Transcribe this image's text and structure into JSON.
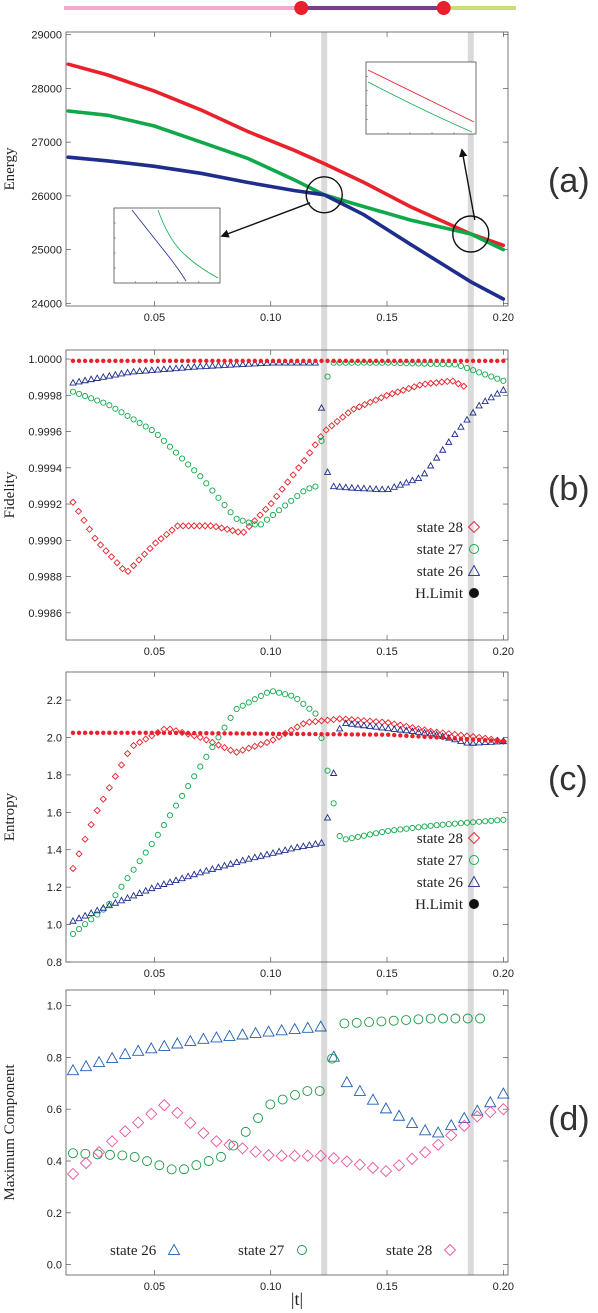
{
  "progress_bar": {
    "segments": [
      {
        "from": 0.0,
        "to": 0.525,
        "color": "#f2a8cf"
      },
      {
        "from": 0.525,
        "to": 0.84,
        "color": "#7a3d8a"
      },
      {
        "from": 0.84,
        "to": 1.0,
        "color": "#c9dd7a"
      }
    ],
    "markers": [
      0.525,
      0.84
    ],
    "marker_color": "#e8202e"
  },
  "x_axis": {
    "label": "|t|",
    "range": [
      0.012,
      0.202
    ],
    "ticks": [
      "0.05",
      "0.10",
      "0.15",
      "0.20"
    ]
  },
  "crossings_t": [
    0.123,
    0.186
  ],
  "colors": {
    "red": "#e8212b",
    "green": "#11a84a",
    "blue": "#1f2d8c",
    "vline": "#d4d4d4"
  },
  "chart_data": [
    {
      "panel": "a",
      "letter": "(a)",
      "type": "line",
      "ylabel": "Energy",
      "ylim": [
        23950,
        29050
      ],
      "yticks": [
        24000,
        25000,
        26000,
        27000,
        28000,
        29000
      ],
      "x": [
        0.013,
        0.03,
        0.05,
        0.07,
        0.09,
        0.11,
        0.123,
        0.14,
        0.16,
        0.186,
        0.2
      ],
      "series": [
        {
          "color": "#e8212b",
          "values": [
            28450,
            28250,
            27950,
            27600,
            27200,
            26850,
            26600,
            26250,
            25800,
            25290,
            25080
          ]
        },
        {
          "color": "#11a84a",
          "values": [
            27580,
            27500,
            27300,
            27000,
            26700,
            26300,
            26020,
            25800,
            25550,
            25290,
            25000
          ]
        },
        {
          "color": "#1f2d8c",
          "values": [
            26720,
            26650,
            26550,
            26420,
            26250,
            26100,
            26020,
            25650,
            25100,
            24400,
            24080
          ]
        }
      ],
      "circles": [
        {
          "x": 0.123,
          "y": 26020
        },
        {
          "x": 0.186,
          "y": 25290
        }
      ]
    },
    {
      "panel": "b",
      "letter": "(b)",
      "type": "scatter",
      "ylabel": "Fidelity",
      "ylim": [
        0.99845,
        1.00005
      ],
      "yticks": [
        "0.9986",
        "0.9988",
        "0.9990",
        "0.9992",
        "0.9994",
        "0.9996",
        "0.9998",
        "1.0000"
      ],
      "ytick_values": [
        0.9986,
        0.9988,
        0.999,
        0.9992,
        0.9994,
        0.9996,
        0.9998,
        1.0
      ],
      "series": [
        {
          "name": "state 28",
          "marker": "diamond",
          "color": "#e8212b",
          "x": [
            0.015,
            0.025,
            0.038,
            0.05,
            0.06,
            0.075,
            0.088,
            0.1,
            0.115,
            0.123,
            0.135,
            0.15,
            0.165,
            0.178,
            0.183
          ],
          "y": [
            0.99921,
            0.999,
            0.99882,
            0.99898,
            0.99908,
            0.99908,
            0.99904,
            0.9992,
            0.99945,
            0.9996,
            0.99972,
            0.9998,
            0.99986,
            0.99988,
            0.99985
          ]
        },
        {
          "name": "state 27",
          "marker": "circle",
          "color": "#11a84a",
          "x": [
            0.015,
            0.03,
            0.05,
            0.07,
            0.085,
            0.095,
            0.105,
            0.115,
            0.12,
            0.125,
            0.15,
            0.18,
            0.2
          ],
          "y": [
            0.99982,
            0.99975,
            0.9996,
            0.99935,
            0.99912,
            0.99908,
            0.99918,
            0.99928,
            0.9993,
            0.99998,
            0.99998,
            0.99997,
            0.99988
          ]
        },
        {
          "name": "state 26",
          "marker": "triangle",
          "color": "#1f2d8c",
          "x": [
            0.015,
            0.04,
            0.07,
            0.1,
            0.12,
            0.125,
            0.135,
            0.15,
            0.165,
            0.18,
            0.19,
            0.2
          ],
          "y": [
            0.99987,
            0.99993,
            0.99996,
            0.99998,
            0.99998,
            0.9993,
            0.99929,
            0.99928,
            0.99935,
            0.9996,
            0.99975,
            0.99983
          ]
        },
        {
          "name": "H.Limit",
          "marker": "dot",
          "color": "#e8212b",
          "x": [
            0.015,
            0.05,
            0.1,
            0.15,
            0.2
          ],
          "y": [
            0.99999,
            0.99999,
            0.99999,
            0.99999,
            0.99999
          ]
        }
      ],
      "legend": [
        "state 28",
        "state 27",
        "state 26",
        "H.Limit"
      ]
    },
    {
      "panel": "c",
      "letter": "(c)",
      "type": "scatter",
      "ylabel": "Entropy",
      "ylim": [
        0.8,
        2.35
      ],
      "yticks": [
        "0.8",
        "1.0",
        "1.2",
        "1.4",
        "1.6",
        "1.8",
        "2.0",
        "2.2"
      ],
      "ytick_values": [
        0.8,
        1.0,
        1.2,
        1.4,
        1.6,
        1.8,
        2.0,
        2.2
      ],
      "series": [
        {
          "name": "state 28",
          "marker": "diamond",
          "color": "#e8212b",
          "x": [
            0.015,
            0.025,
            0.04,
            0.055,
            0.07,
            0.085,
            0.1,
            0.115,
            0.13,
            0.15,
            0.17,
            0.19,
            0.2
          ],
          "y": [
            1.3,
            1.6,
            1.95,
            2.05,
            2.0,
            1.92,
            1.98,
            2.08,
            2.1,
            2.08,
            2.03,
            2.0,
            1.98
          ]
        },
        {
          "name": "state 27",
          "marker": "circle",
          "color": "#11a84a",
          "x": [
            0.015,
            0.03,
            0.05,
            0.07,
            0.085,
            0.1,
            0.11,
            0.12,
            0.13,
            0.15,
            0.17,
            0.19,
            0.2
          ],
          "y": [
            0.95,
            1.1,
            1.45,
            1.85,
            2.15,
            2.25,
            2.22,
            2.12,
            1.45,
            1.5,
            1.53,
            1.55,
            1.56
          ]
        },
        {
          "name": "state 26",
          "marker": "triangle",
          "color": "#1f2d8c",
          "x": [
            0.015,
            0.03,
            0.05,
            0.07,
            0.09,
            0.11,
            0.123,
            0.13,
            0.15,
            0.17,
            0.185,
            0.2
          ],
          "y": [
            1.02,
            1.1,
            1.2,
            1.28,
            1.35,
            1.41,
            1.44,
            2.08,
            2.05,
            2.02,
            1.97,
            1.98
          ]
        },
        {
          "name": "H.Limit",
          "marker": "dot",
          "color": "#e8212b",
          "x": [
            0.015,
            0.05,
            0.1,
            0.15,
            0.2
          ],
          "y": [
            2.025,
            2.025,
            2.02,
            2.015,
            1.98
          ]
        }
      ],
      "legend": [
        "state 28",
        "state 27",
        "state 26",
        "H.Limit"
      ]
    },
    {
      "panel": "d",
      "letter": "(d)",
      "type": "scatter",
      "ylabel": "Maximum Component",
      "ylim": [
        -0.04,
        1.06
      ],
      "yticks": [
        "0.0",
        "0.2",
        "0.4",
        "0.6",
        "0.8",
        "1.0"
      ],
      "ytick_values": [
        0.0,
        0.2,
        0.4,
        0.6,
        0.8,
        1.0
      ],
      "series": [
        {
          "name": "state 26",
          "marker": "triangle-open",
          "color": "#1f5fb0",
          "x": [
            0.015,
            0.04,
            0.07,
            0.1,
            0.123,
            0.13,
            0.15,
            0.17,
            0.19,
            0.2
          ],
          "y": [
            0.75,
            0.82,
            0.87,
            0.9,
            0.92,
            0.72,
            0.6,
            0.5,
            0.6,
            0.66
          ]
        },
        {
          "name": "state 27",
          "marker": "circle-open",
          "color": "#1a9a45",
          "x": [
            0.015,
            0.04,
            0.06,
            0.08,
            0.1,
            0.115,
            0.123,
            0.13,
            0.15,
            0.17,
            0.19
          ],
          "y": [
            0.43,
            0.42,
            0.36,
            0.42,
            0.62,
            0.67,
            0.67,
            0.93,
            0.94,
            0.95,
            0.95
          ]
        },
        {
          "name": "state 28",
          "marker": "diamond-open",
          "color": "#e8559a",
          "x": [
            0.015,
            0.035,
            0.055,
            0.075,
            0.1,
            0.123,
            0.15,
            0.17,
            0.19,
            0.2
          ],
          "y": [
            0.35,
            0.5,
            0.62,
            0.48,
            0.42,
            0.42,
            0.36,
            0.45,
            0.58,
            0.6
          ]
        }
      ],
      "legend": [
        "state 26",
        "state 27",
        "state 28"
      ]
    }
  ]
}
